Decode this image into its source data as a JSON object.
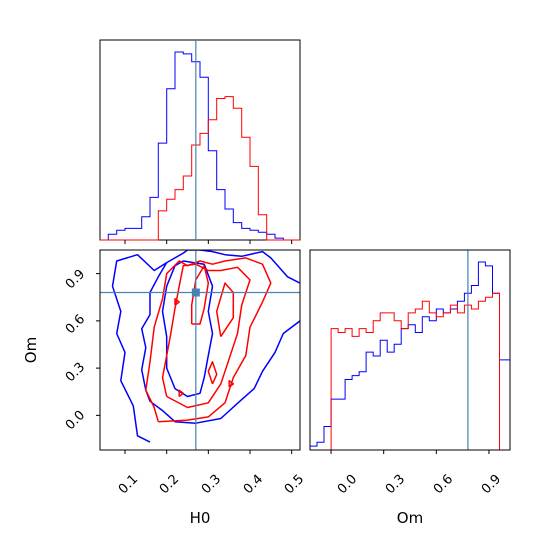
{
  "chart_data": {
    "type": "corner",
    "parameters": [
      "H0",
      "Om"
    ],
    "truth": {
      "H0": 0.27,
      "Om": 0.78
    },
    "colors": {
      "blue": "#0000ff",
      "red": "#ff0000",
      "truth": "#4682b4"
    },
    "panels": {
      "H0_hist": {
        "xlim": [
          0.04,
          0.52
        ],
        "bin_edges": [
          0.04,
          0.06,
          0.08,
          0.1,
          0.12,
          0.14,
          0.16,
          0.18,
          0.2,
          0.22,
          0.24,
          0.26,
          0.28,
          0.3,
          0.32,
          0.34,
          0.36,
          0.38,
          0.4,
          0.42,
          0.44,
          0.46,
          0.48,
          0.5,
          0.52
        ],
        "series": [
          {
            "color": "#0000ff",
            "counts": [
              0.0,
              0.03,
              0.05,
              0.06,
              0.06,
              0.12,
              0.22,
              0.5,
              0.78,
              0.97,
              0.96,
              0.92,
              0.84,
              0.46,
              0.26,
              0.16,
              0.09,
              0.06,
              0.05,
              0.04,
              0.03,
              0.01,
              0.0,
              0.0
            ]
          },
          {
            "color": "#ff0000",
            "counts": [
              0,
              0,
              0,
              0,
              0,
              0,
              0,
              0.15,
              0.21,
              0.26,
              0.33,
              0.49,
              0.55,
              0.62,
              0.73,
              0.74,
              0.68,
              0.53,
              0.38,
              0.13,
              0.0,
              0,
              0,
              0
            ]
          }
        ]
      },
      "Om_hist": {
        "xlim": [
          -0.12,
          1.02
        ],
        "bin_edges": [
          -0.12,
          -0.08,
          -0.04,
          0.0,
          0.04,
          0.08,
          0.12,
          0.16,
          0.2,
          0.24,
          0.28,
          0.32,
          0.36,
          0.4,
          0.44,
          0.48,
          0.52,
          0.56,
          0.6,
          0.64,
          0.68,
          0.72,
          0.76,
          0.8,
          0.84,
          0.88,
          0.92,
          0.96,
          1.0,
          1.02
        ],
        "series": [
          {
            "color": "#0000ff",
            "counts": [
              0.02,
              0.04,
              0.12,
              0.26,
              0.26,
              0.36,
              0.38,
              0.4,
              0.5,
              0.48,
              0.56,
              0.5,
              0.54,
              0.62,
              0.64,
              0.6,
              0.68,
              0.66,
              0.72,
              0.7,
              0.72,
              0.76,
              0.8,
              0.84,
              0.96,
              0.94,
              0.8,
              0.46,
              0.46
            ]
          },
          {
            "color": "#ff0000",
            "counts": [
              0,
              0,
              0,
              0.62,
              0.6,
              0.62,
              0.58,
              0.62,
              0.6,
              0.66,
              0.7,
              0.7,
              0.66,
              0.62,
              0.7,
              0.72,
              0.76,
              0.7,
              0.68,
              0.7,
              0.74,
              0.7,
              0.74,
              0.72,
              0.76,
              0.78,
              0.8,
              0.0,
              0.0
            ]
          }
        ]
      },
      "joint": {
        "xlim": [
          0.04,
          0.52
        ],
        "ylim": [
          -0.22,
          1.05
        ],
        "contours": [
          {
            "color": "#0000ff",
            "points": [
              [
                0.16,
                -0.17
              ],
              [
                0.13,
                -0.13
              ],
              [
                0.12,
                0.06
              ],
              [
                0.09,
                0.22
              ],
              [
                0.1,
                0.4
              ],
              [
                0.08,
                0.52
              ],
              [
                0.09,
                0.66
              ],
              [
                0.07,
                0.82
              ],
              [
                0.08,
                0.98
              ],
              [
                0.13,
                1.02
              ],
              [
                0.17,
                0.92
              ],
              [
                0.2,
                0.97
              ],
              [
                0.24,
                1.03
              ],
              [
                0.25,
                1.05
              ],
              [
                0.28,
                1.05
              ],
              [
                0.31,
                1.04
              ],
              [
                0.34,
                1.02
              ],
              [
                0.38,
                1.01
              ],
              [
                0.43,
                1.04
              ],
              [
                0.45,
                1.0
              ],
              [
                0.49,
                0.88
              ],
              [
                0.52,
                0.84
              ]
            ]
          },
          {
            "color": "#0000ff",
            "points": [
              [
                0.52,
                0.6
              ],
              [
                0.48,
                0.52
              ],
              [
                0.46,
                0.4
              ],
              [
                0.43,
                0.28
              ],
              [
                0.41,
                0.17
              ],
              [
                0.38,
                0.1
              ],
              [
                0.33,
                -0.02
              ],
              [
                0.27,
                -0.05
              ],
              [
                0.22,
                -0.04
              ],
              [
                0.19,
                0.03
              ],
              [
                0.16,
                0.09
              ],
              [
                0.15,
                0.16
              ],
              [
                0.14,
                0.29
              ],
              [
                0.15,
                0.43
              ],
              [
                0.14,
                0.55
              ],
              [
                0.16,
                0.64
              ],
              [
                0.16,
                0.78
              ],
              [
                0.18,
                0.88
              ],
              [
                0.2,
                0.97
              ]
            ]
          },
          {
            "color": "#0000ff",
            "points": [
              [
                0.22,
                0.95
              ],
              [
                0.2,
                0.82
              ],
              [
                0.19,
                0.66
              ],
              [
                0.2,
                0.5
              ],
              [
                0.2,
                0.3
              ],
              [
                0.22,
                0.17
              ],
              [
                0.25,
                0.12
              ],
              [
                0.28,
                0.14
              ],
              [
                0.29,
                0.24
              ],
              [
                0.3,
                0.38
              ],
              [
                0.31,
                0.52
              ],
              [
                0.3,
                0.66
              ],
              [
                0.31,
                0.82
              ],
              [
                0.29,
                0.96
              ],
              [
                0.24,
                0.98
              ],
              [
                0.22,
                0.95
              ]
            ]
          },
          {
            "color": "#ff0000",
            "points": [
              [
                0.18,
                -0.04
              ],
              [
                0.17,
                0.05
              ],
              [
                0.15,
                0.16
              ],
              [
                0.16,
                0.34
              ],
              [
                0.17,
                0.56
              ],
              [
                0.19,
                0.74
              ],
              [
                0.2,
                0.9
              ],
              [
                0.23,
                0.98
              ],
              [
                0.25,
                0.95
              ],
              [
                0.28,
                0.98
              ],
              [
                0.31,
                0.96
              ],
              [
                0.34,
                0.98
              ],
              [
                0.39,
                1.0
              ],
              [
                0.43,
                0.96
              ],
              [
                0.45,
                0.84
              ],
              [
                0.43,
                0.72
              ],
              [
                0.4,
                0.56
              ],
              [
                0.39,
                0.38
              ],
              [
                0.36,
                0.24
              ],
              [
                0.34,
                0.08
              ],
              [
                0.3,
                -0.01
              ],
              [
                0.25,
                -0.03
              ],
              [
                0.18,
                -0.04
              ]
            ]
          },
          {
            "color": "#ff0000",
            "points": [
              [
                0.2,
                0.12
              ],
              [
                0.19,
                0.24
              ],
              [
                0.2,
                0.38
              ],
              [
                0.21,
                0.52
              ],
              [
                0.22,
                0.68
              ],
              [
                0.23,
                0.82
              ],
              [
                0.24,
                0.95
              ],
              [
                0.27,
                0.96
              ],
              [
                0.3,
                0.92
              ],
              [
                0.33,
                0.92
              ],
              [
                0.37,
                0.94
              ],
              [
                0.4,
                0.86
              ],
              [
                0.38,
                0.7
              ],
              [
                0.37,
                0.52
              ],
              [
                0.35,
                0.36
              ],
              [
                0.33,
                0.2
              ],
              [
                0.3,
                0.08
              ],
              [
                0.25,
                0.05
              ],
              [
                0.2,
                0.12
              ]
            ]
          },
          {
            "color": "#ff0000",
            "points": [
              [
                0.26,
                0.58
              ],
              [
                0.26,
                0.7
              ],
              [
                0.27,
                0.86
              ],
              [
                0.29,
                0.95
              ],
              [
                0.3,
                0.84
              ],
              [
                0.29,
                0.68
              ],
              [
                0.28,
                0.58
              ],
              [
                0.26,
                0.58
              ]
            ]
          },
          {
            "color": "#ff0000",
            "points": [
              [
                0.33,
                0.5
              ],
              [
                0.32,
                0.66
              ],
              [
                0.34,
                0.84
              ],
              [
                0.36,
                0.78
              ],
              [
                0.36,
                0.62
              ],
              [
                0.33,
                0.5
              ]
            ]
          },
          {
            "color": "#ff0000",
            "points": [
              [
                0.31,
                0.2
              ],
              [
                0.3,
                0.28
              ],
              [
                0.31,
                0.34
              ],
              [
                0.32,
                0.26
              ],
              [
                0.31,
                0.2
              ]
            ]
          },
          {
            "color": "#ff0000",
            "points": [
              [
                0.35,
                0.18
              ],
              [
                0.35,
                0.22
              ],
              [
                0.36,
                0.2
              ],
              [
                0.35,
                0.18
              ]
            ]
          },
          {
            "color": "#ff0000",
            "points": [
              [
                0.23,
                0.12
              ],
              [
                0.23,
                0.16
              ],
              [
                0.24,
                0.14
              ],
              [
                0.23,
                0.12
              ]
            ]
          },
          {
            "color": "#ff0000",
            "points": [
              [
                0.22,
                0.7
              ],
              [
                0.22,
                0.74
              ],
              [
                0.23,
                0.72
              ],
              [
                0.22,
                0.7
              ]
            ]
          }
        ]
      }
    },
    "x_ticks_H0": [
      "0.1",
      "0.2",
      "0.3",
      "0.4",
      "0.5"
    ],
    "x_ticks_Om": [
      "0.0",
      "0.3",
      "0.6",
      "0.9"
    ],
    "y_ticks_Om": [
      "0.0",
      "0.3",
      "0.6",
      "0.9"
    ],
    "xlabel_left": "H0",
    "xlabel_right": "Om",
    "ylabel_left": "Om"
  }
}
